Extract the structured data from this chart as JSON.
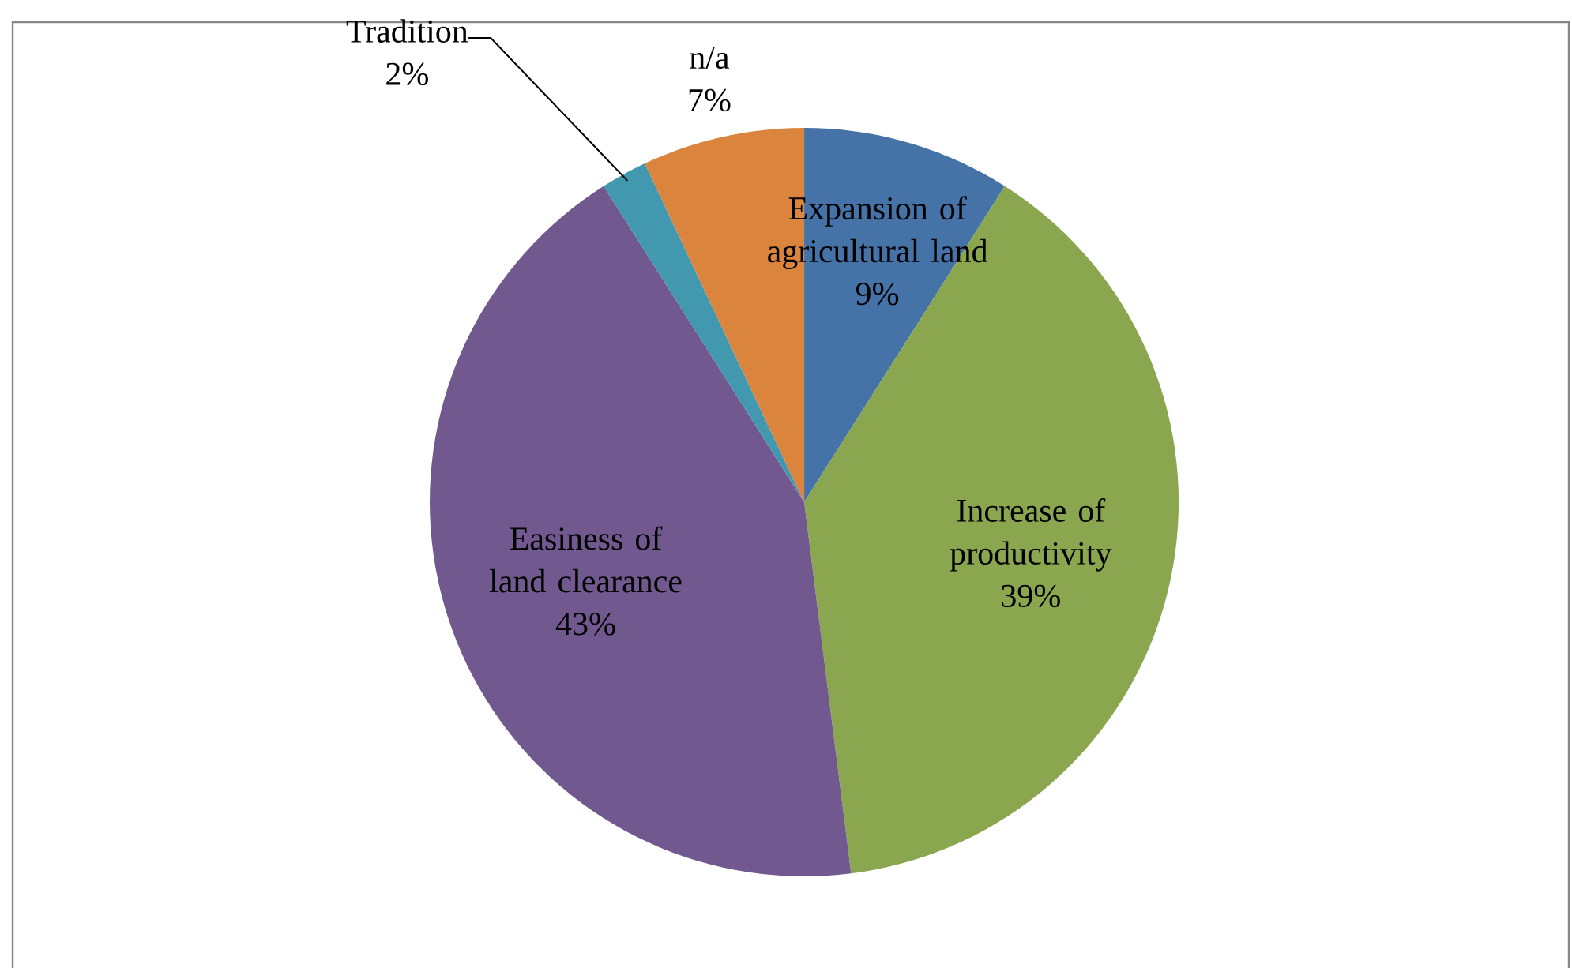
{
  "chart_data": {
    "type": "pie",
    "categories": [
      "Expansion of agricultural land",
      "Increase of productivity",
      "Easiness of land clearance",
      "Tradition",
      "n/a"
    ],
    "values": [
      9,
      39,
      43,
      2,
      7
    ],
    "colors": [
      "#4572a7",
      "#8aa64f",
      "#71588f",
      "#4198af",
      "#db843d"
    ],
    "value_labels": [
      "9%",
      "39%",
      "43%",
      "2%",
      "7%"
    ]
  }
}
